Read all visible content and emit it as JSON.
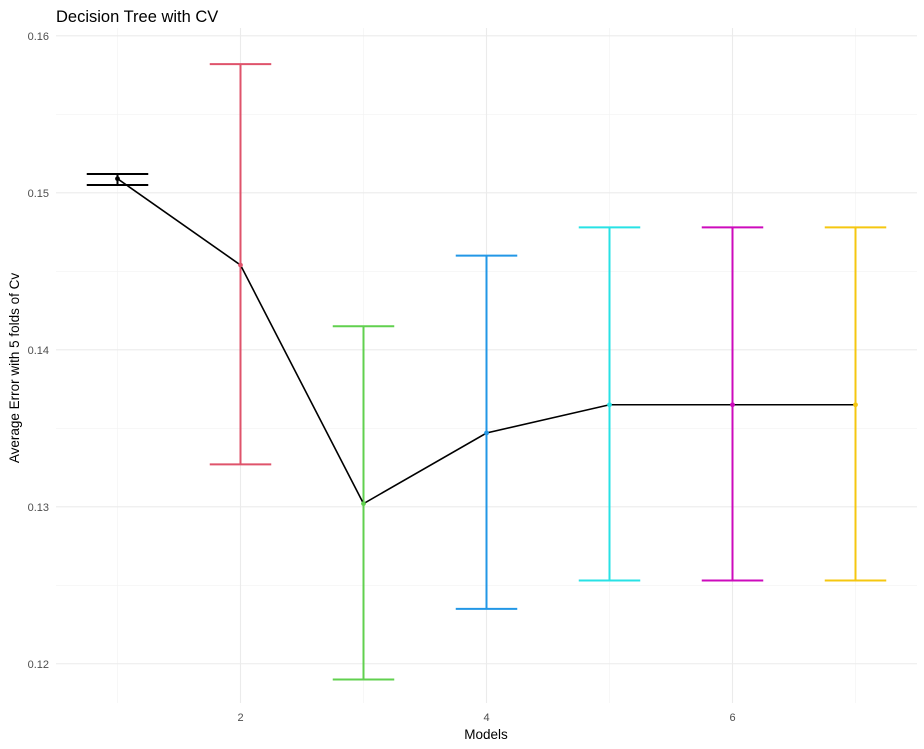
{
  "chart_data": {
    "type": "errorbar-line",
    "title": "Decision Tree with CV",
    "xlabel": "Models",
    "ylabel": "Average Error with 5 folds of Cv",
    "xlim": [
      0.5,
      7.5
    ],
    "ylim": [
      0.1175,
      0.1605
    ],
    "x_ticks": [
      2,
      4,
      6
    ],
    "y_ticks": [
      0.12,
      0.13,
      0.14,
      0.15,
      0.16
    ],
    "y_tick_labels": [
      "0.12",
      "0.13",
      "0.14",
      "0.15",
      "0.16"
    ],
    "x_tick_labels": [
      "2",
      "4",
      "6"
    ],
    "grid": true,
    "legend": "none",
    "points": [
      {
        "model": 1,
        "mean": 0.1509,
        "lower": 0.1505,
        "upper": 0.1512,
        "color": "#000000"
      },
      {
        "model": 2,
        "mean": 0.1454,
        "lower": 0.1327,
        "upper": 0.1582,
        "color": "#DF536B"
      },
      {
        "model": 3,
        "mean": 0.1302,
        "lower": 0.119,
        "upper": 0.1415,
        "color": "#61D04F"
      },
      {
        "model": 4,
        "mean": 0.1347,
        "lower": 0.1235,
        "upper": 0.146,
        "color": "#2297E6"
      },
      {
        "model": 5,
        "mean": 0.1365,
        "lower": 0.1253,
        "upper": 0.1478,
        "color": "#28E2E5"
      },
      {
        "model": 6,
        "mean": 0.1365,
        "lower": 0.1253,
        "upper": 0.1478,
        "color": "#CD0BBC"
      },
      {
        "model": 7,
        "mean": 0.1365,
        "lower": 0.1253,
        "upper": 0.1478,
        "color": "#F5C710"
      }
    ]
  }
}
